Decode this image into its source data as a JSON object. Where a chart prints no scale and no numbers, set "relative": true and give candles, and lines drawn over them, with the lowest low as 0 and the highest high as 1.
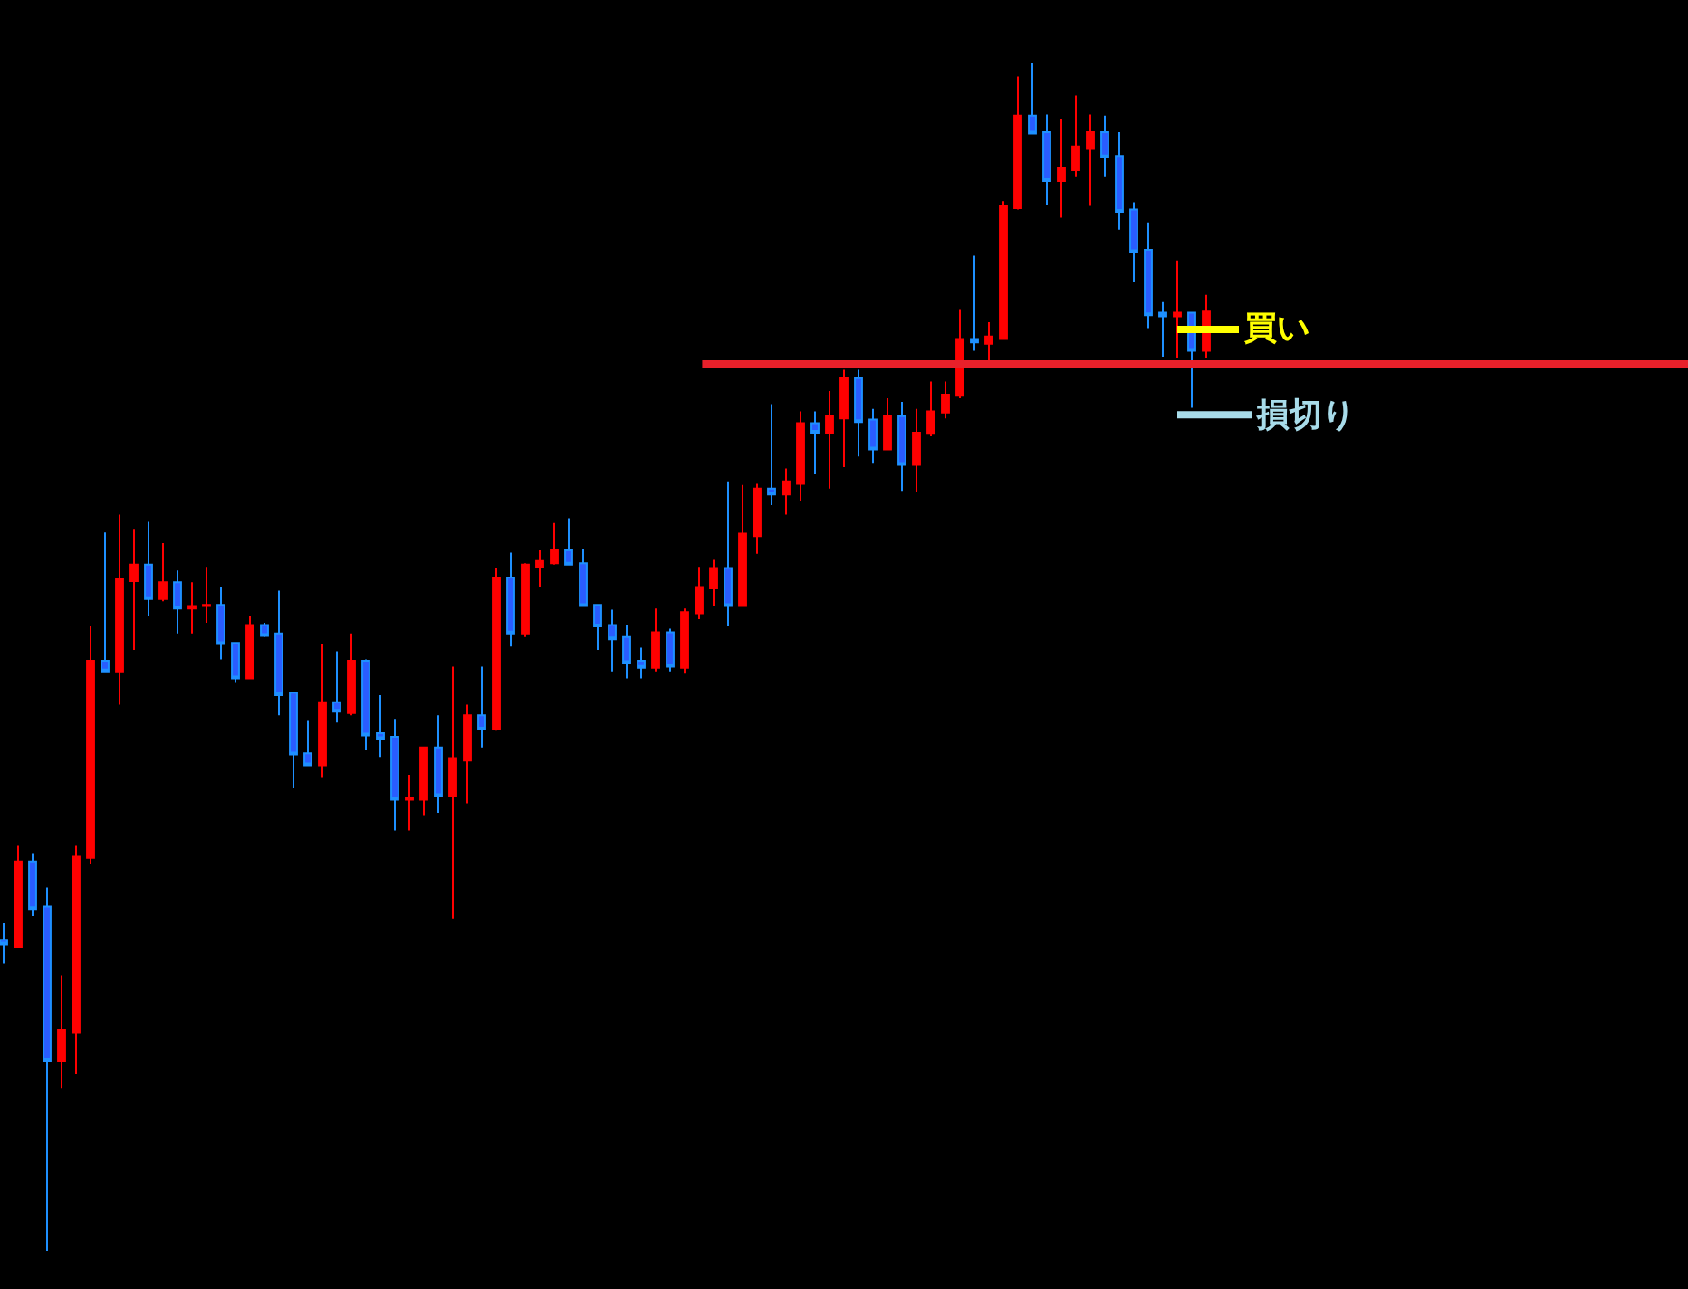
{
  "chart_data": {
    "type": "candlestick",
    "relative": true,
    "tick_labels": false,
    "categories": [
      null,
      null,
      null,
      null,
      null,
      null,
      null,
      null,
      null,
      null,
      null,
      null,
      null,
      null,
      null,
      null,
      null,
      null,
      null,
      null,
      null,
      null,
      null,
      null,
      null,
      null,
      null,
      null,
      null,
      null,
      null,
      null,
      null,
      null,
      null,
      null,
      null,
      null,
      null,
      null,
      null,
      null,
      null,
      null,
      null,
      null,
      null,
      null,
      null,
      null,
      null,
      null,
      null,
      null,
      null,
      null,
      null,
      null,
      null,
      null,
      null,
      null,
      null,
      null,
      null,
      null,
      null,
      null,
      null,
      null,
      null,
      null,
      null,
      null,
      null,
      null,
      null,
      null,
      null,
      null,
      null,
      null,
      null,
      null
    ],
    "ohlc": [
      [
        0.262,
        0.276,
        0.242,
        0.258
      ],
      [
        0.256,
        0.341,
        0.256,
        0.328
      ],
      [
        0.328,
        0.335,
        0.282,
        0.288
      ],
      [
        0.29,
        0.306,
        0,
        0.16
      ],
      [
        0.16,
        0.232,
        0.137,
        0.186
      ],
      [
        0.184,
        0.341,
        0.149,
        0.332
      ],
      [
        0.331,
        0.526,
        0.326,
        0.497
      ],
      [
        0.497,
        0.605,
        0.488,
        0.488
      ],
      [
        0.488,
        0.62,
        0.46,
        0.566
      ],
      [
        0.564,
        0.608,
        0.506,
        0.578
      ],
      [
        0.578,
        0.614,
        0.535,
        0.549
      ],
      [
        0.549,
        0.596,
        0.547,
        0.563
      ],
      [
        0.563,
        0.573,
        0.52,
        0.541
      ],
      [
        0.541,
        0.563,
        0.52,
        0.543
      ],
      [
        0.543,
        0.576,
        0.529,
        0.544
      ],
      [
        0.544,
        0.559,
        0.498,
        0.511
      ],
      [
        0.512,
        0.512,
        0.479,
        0.482
      ],
      [
        0.482,
        0.535,
        0.482,
        0.527
      ],
      [
        0.527,
        0.529,
        0.517,
        0.518
      ],
      [
        0.52,
        0.556,
        0.451,
        0.468
      ],
      [
        0.47,
        0.47,
        0.39,
        0.418
      ],
      [
        0.419,
        0.447,
        0.409,
        0.409
      ],
      [
        0.409,
        0.511,
        0.399,
        0.462
      ],
      [
        0.462,
        0.505,
        0.445,
        0.454
      ],
      [
        0.453,
        0.52,
        0.451,
        0.497
      ],
      [
        0.497,
        0.498,
        0.422,
        0.434
      ],
      [
        0.436,
        0.468,
        0.416,
        0.431
      ],
      [
        0.433,
        0.448,
        0.354,
        0.38
      ],
      [
        0.38,
        0.401,
        0.354,
        0.381
      ],
      [
        0.38,
        0.424,
        0.367,
        0.424
      ],
      [
        0.424,
        0.451,
        0.369,
        0.383
      ],
      [
        0.383,
        0.492,
        0.28,
        0.415
      ],
      [
        0.413,
        0.46,
        0.377,
        0.451
      ],
      [
        0.451,
        0.492,
        0.424,
        0.439
      ],
      [
        0.439,
        0.575,
        0.438,
        0.567
      ],
      [
        0.567,
        0.588,
        0.509,
        0.52
      ],
      [
        0.52,
        0.579,
        0.517,
        0.578
      ],
      [
        0.576,
        0.59,
        0.559,
        0.581
      ],
      [
        0.579,
        0.613,
        0.578,
        0.59
      ],
      [
        0.59,
        0.617,
        0.578,
        0.578
      ],
      [
        0.579,
        0.591,
        0.543,
        0.543
      ],
      [
        0.544,
        0.544,
        0.506,
        0.526
      ],
      [
        0.527,
        0.54,
        0.488,
        0.515
      ],
      [
        0.517,
        0.527,
        0.482,
        0.495
      ],
      [
        0.497,
        0.508,
        0.482,
        0.491
      ],
      [
        0.491,
        0.541,
        0.488,
        0.521
      ],
      [
        0.521,
        0.524,
        0.488,
        0.492
      ],
      [
        0.491,
        0.541,
        0.486,
        0.538
      ],
      [
        0.537,
        0.576,
        0.532,
        0.559
      ],
      [
        0.558,
        0.582,
        0.543,
        0.575
      ],
      [
        0.575,
        0.648,
        0.526,
        0.543
      ],
      [
        0.543,
        0.645,
        0.543,
        0.604
      ],
      [
        0.602,
        0.646,
        0.587,
        0.642
      ],
      [
        0.642,
        0.713,
        0.628,
        0.637
      ],
      [
        0.637,
        0.659,
        0.62,
        0.648
      ],
      [
        0.646,
        0.707,
        0.631,
        0.697
      ],
      [
        0.697,
        0.707,
        0.654,
        0.689
      ],
      [
        0.689,
        0.724,
        0.642,
        0.703
      ],
      [
        0.701,
        0.742,
        0.66,
        0.735
      ],
      [
        0.735,
        0.742,
        0.669,
        0.698
      ],
      [
        0.7,
        0.709,
        0.663,
        0.675
      ],
      [
        0.675,
        0.718,
        0.675,
        0.703
      ],
      [
        0.703,
        0.715,
        0.64,
        0.662
      ],
      [
        0.662,
        0.709,
        0.639,
        0.689
      ],
      [
        0.688,
        0.732,
        0.686,
        0.707
      ],
      [
        0.706,
        0.732,
        0.701,
        0.721
      ],
      [
        0.72,
        0.793,
        0.718,
        0.768
      ],
      [
        0.768,
        0.838,
        0.758,
        0.765
      ],
      [
        0.764,
        0.782,
        0.75,
        0.77
      ],
      [
        0.768,
        0.884,
        0.768,
        0.88
      ],
      [
        0.878,
        0.989,
        0.877,
        0.956
      ],
      [
        0.956,
        1,
        0.941,
        0.941
      ],
      [
        0.942,
        0.957,
        0.881,
        0.901
      ],
      [
        0.901,
        0.953,
        0.87,
        0.912
      ],
      [
        0.91,
        0.973,
        0.905,
        0.93
      ],
      [
        0.928,
        0.957,
        0.88,
        0.942
      ],
      [
        0.942,
        0.956,
        0.905,
        0.921
      ],
      [
        0.922,
        0.942,
        0.86,
        0.875
      ],
      [
        0.877,
        0.883,
        0.816,
        0.841
      ],
      [
        0.843,
        0.866,
        0.777,
        0.788
      ],
      [
        0.79,
        0.799,
        0.753,
        0.787
      ],
      [
        0.787,
        0.834,
        0.752,
        0.79
      ],
      [
        0.79,
        0.79,
        0.71,
        0.758
      ],
      [
        0.758,
        0.805,
        0.752,
        0.791
      ]
    ],
    "ref_lines": [
      {
        "axis": "y",
        "value": 0.747,
        "color": "#e8202a"
      }
    ],
    "annotations": [
      "買い",
      "損切り"
    ]
  }
}
